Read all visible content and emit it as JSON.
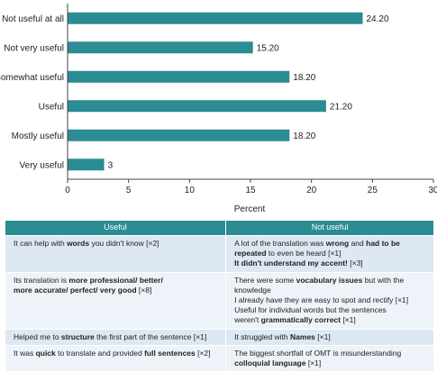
{
  "chart_data": {
    "type": "bar",
    "orientation": "horizontal",
    "categories": [
      "Not useful at all",
      "Not very useful",
      "Somewhat useful",
      "Useful",
      "Mostly useful",
      "Very useful"
    ],
    "values": [
      24.2,
      15.2,
      18.2,
      21.2,
      18.2,
      3
    ],
    "data_labels": [
      "24.20",
      "15.20",
      "18.20",
      "21.20",
      "18.20",
      "3"
    ],
    "xlabel": "Percent",
    "xlim": [
      0,
      30
    ],
    "xticks": [
      0,
      5,
      10,
      15,
      20,
      25,
      30
    ],
    "bar_color": "#2b8c93",
    "grid": false,
    "legend": "none"
  },
  "table": {
    "headers": [
      "Useful",
      "Not useful"
    ],
    "header_color": "#2b8c93",
    "rows": [
      {
        "useful": [
          [
            {
              "t": "It can help with "
            },
            {
              "t": "words",
              "b": true
            },
            {
              "t": " you didn't know [×2]"
            }
          ]
        ],
        "not_useful": [
          [
            {
              "t": "A lot of the translation was "
            },
            {
              "t": "wrong",
              "b": true
            },
            {
              "t": " and "
            },
            {
              "t": "had to be",
              "b": true
            }
          ],
          [
            {
              "t": "repeated",
              "b": true
            },
            {
              "t": " to even be heard [×1]"
            }
          ],
          [
            {
              "t": "It didn't understand my accent!",
              "b": true
            },
            {
              "t": " [×3]"
            }
          ]
        ]
      },
      {
        "useful": [
          [
            {
              "t": "Its translation is "
            },
            {
              "t": "more professional/ better/",
              "b": true
            }
          ],
          [
            {
              "t": "more accurate/ perfect/ very good",
              "b": true
            },
            {
              "t": " [×8]"
            }
          ]
        ],
        "not_useful": [
          [
            {
              "t": "There were some "
            },
            {
              "t": "vocabulary issues",
              "b": true
            },
            {
              "t": " but with the knowledge"
            }
          ],
          [
            {
              "t": "I already have they are easy to spot and rectify [×1]"
            }
          ],
          [
            {
              "t": "Useful for individual words but the sentences"
            }
          ],
          [
            {
              "t": "weren't "
            },
            {
              "t": "grammatically correct",
              "b": true
            },
            {
              "t": " [×1]"
            }
          ]
        ]
      },
      {
        "useful": [
          [
            {
              "t": "Helped me to "
            },
            {
              "t": "structure",
              "b": true
            },
            {
              "t": " the first part of the sentence [×1]"
            }
          ]
        ],
        "not_useful": [
          [
            {
              "t": "It struggled with "
            },
            {
              "t": "Names",
              "b": true
            },
            {
              "t": " [×1]"
            }
          ]
        ]
      },
      {
        "useful": [
          [
            {
              "t": "It was "
            },
            {
              "t": "quick",
              "b": true
            },
            {
              "t": " to translate and provided "
            },
            {
              "t": "full sentences",
              "b": true
            },
            {
              "t": " [×2]"
            }
          ]
        ],
        "not_useful": [
          [
            {
              "t": "The biggest shortfall of OMT is misunderstanding"
            }
          ],
          [
            {
              "t": "colloquial language",
              "b": true
            },
            {
              "t": " [×1]"
            }
          ]
        ]
      }
    ]
  }
}
